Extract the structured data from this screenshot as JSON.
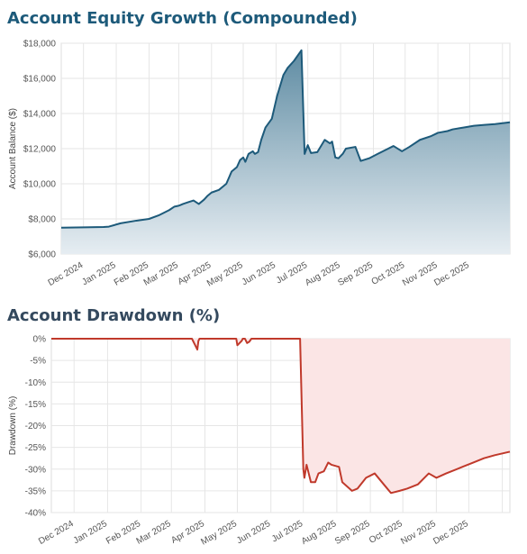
{
  "colors": {
    "equity_title": "#1d5a7a",
    "drawdown_title": "#34495e",
    "equity_line": "#1d5a7a",
    "equity_fill_top": "#5f8ca3",
    "equity_fill_bottom": "#e6edf2",
    "drawdown_line": "#c0392b",
    "drawdown_fill": "#fbe5e5",
    "grid": "#e6e6e6"
  },
  "months": [
    "Dec 2024",
    "Jan 2025",
    "Feb 2025",
    "Mar 2025",
    "Apr 2025",
    "May 2025",
    "Jun 2025",
    "Jul 2025",
    "Aug 2025",
    "Sep 2025",
    "Oct 2025",
    "Nov 2025",
    "Dec 2025"
  ],
  "chart_data": [
    {
      "type": "area",
      "title": "Account Equity Growth (Compounded)",
      "xlabel": "",
      "ylabel": "Account Balance ($)",
      "ylim": [
        6000,
        18000
      ],
      "yticks": [
        6000,
        8000,
        10000,
        12000,
        14000,
        16000,
        18000
      ],
      "ytick_labels": [
        "$6,000",
        "$8,000",
        "$10,000",
        "$12,000",
        "$14,000",
        "$16,000",
        "$18,000"
      ],
      "xlim": [
        "2024-11-10",
        "2026-01-08"
      ],
      "grid": true,
      "x": [
        "2024-11-10",
        "2024-12-01",
        "2024-12-20",
        "2024-12-25",
        "2025-01-05",
        "2025-01-20",
        "2025-02-01",
        "2025-02-10",
        "2025-02-20",
        "2025-02-25",
        "2025-03-01",
        "2025-03-03",
        "2025-03-05",
        "2025-03-10",
        "2025-03-15",
        "2025-03-20",
        "2025-03-25",
        "2025-03-28",
        "2025-04-01",
        "2025-04-08",
        "2025-04-15",
        "2025-04-20",
        "2025-04-25",
        "2025-04-28",
        "2025-05-01",
        "2025-05-03",
        "2025-05-06",
        "2025-05-10",
        "2025-05-12",
        "2025-05-15",
        "2025-05-18",
        "2025-05-22",
        "2025-05-28",
        "2025-06-02",
        "2025-06-08",
        "2025-06-12",
        "2025-06-15",
        "2025-06-18",
        "2025-06-25",
        "2025-06-28",
        "2025-07-01",
        "2025-07-04",
        "2025-07-10",
        "2025-07-17",
        "2025-07-22",
        "2025-07-24",
        "2025-07-27",
        "2025-07-30",
        "2025-08-03",
        "2025-08-06",
        "2025-08-15",
        "2025-08-20",
        "2025-08-28",
        "2025-09-05",
        "2025-09-15",
        "2025-09-20",
        "2025-09-28",
        "2025-10-05",
        "2025-10-15",
        "2025-10-25",
        "2025-11-01",
        "2025-11-10",
        "2025-11-15",
        "2025-11-25",
        "2025-12-05",
        "2025-12-15",
        "2025-12-25",
        "2026-01-08"
      ],
      "series": [
        {
          "values": [
            7500,
            7520,
            7540,
            7560,
            7750,
            7900,
            8000,
            8200,
            8500,
            8700,
            8750,
            8800,
            8850,
            8950,
            9050,
            8850,
            9100,
            9300,
            9500,
            9650,
            10000,
            10700,
            10950,
            11350,
            11500,
            11250,
            11700,
            11850,
            11700,
            11800,
            12500,
            13200,
            13700,
            15000,
            16200,
            16600,
            16800,
            17000,
            17600,
            11700,
            12200,
            11750,
            11800,
            12500,
            12300,
            12400,
            11500,
            11450,
            11700,
            12000,
            12100,
            11300,
            11450,
            11700,
            12000,
            12150,
            11850,
            12100,
            12500,
            12700,
            12900,
            13000,
            13100,
            13200,
            13300,
            13350,
            13400,
            13500
          ]
        }
      ]
    },
    {
      "type": "area",
      "title": "Account Drawdown (%)",
      "xlabel": "",
      "ylabel": "Drawdown (%)",
      "ylim": [
        -40,
        0
      ],
      "yticks": [
        0,
        -5,
        -10,
        -15,
        -20,
        -25,
        -30,
        -35,
        -40
      ],
      "ytick_labels": [
        "0%",
        "-5%",
        "-10%",
        "-15%",
        "-20%",
        "-25%",
        "-30%",
        "-35%",
        "-40%"
      ],
      "xlim": [
        "2024-11-10",
        "2026-01-08"
      ],
      "grid": true,
      "x": [
        "2024-11-10",
        "2025-03-20",
        "2025-03-25",
        "2025-03-26",
        "2025-03-27",
        "2025-04-30",
        "2025-05-01",
        "2025-05-05",
        "2025-05-06",
        "2025-05-08",
        "2025-05-10",
        "2025-05-12",
        "2025-05-14",
        "2025-06-28",
        "2025-07-01",
        "2025-07-02",
        "2025-07-04",
        "2025-07-06",
        "2025-07-08",
        "2025-07-12",
        "2025-07-15",
        "2025-07-20",
        "2025-07-24",
        "2025-07-27",
        "2025-08-03",
        "2025-08-06",
        "2025-08-15",
        "2025-08-20",
        "2025-08-28",
        "2025-09-05",
        "2025-09-15",
        "2025-09-20",
        "2025-09-28",
        "2025-10-05",
        "2025-10-15",
        "2025-10-25",
        "2025-11-01",
        "2025-11-10",
        "2025-11-15",
        "2025-11-25",
        "2025-12-05",
        "2025-12-15",
        "2025-12-25",
        "2026-01-08"
      ],
      "series": [
        {
          "values": [
            0,
            0,
            -2.5,
            -0.5,
            0,
            0,
            -1.5,
            -0.5,
            0,
            0,
            -1,
            -0.7,
            0,
            0,
            -30,
            -32,
            -29,
            -31,
            -33,
            -33,
            -31,
            -30.5,
            -28.5,
            -29,
            -29.5,
            -33,
            -35,
            -34.5,
            -32,
            -31,
            -34,
            -35.5,
            -35,
            -34.5,
            -33.5,
            -31,
            -32,
            -31,
            -30.5,
            -29.5,
            -28.5,
            -27.5,
            -26.8,
            -26
          ]
        }
      ]
    }
  ]
}
